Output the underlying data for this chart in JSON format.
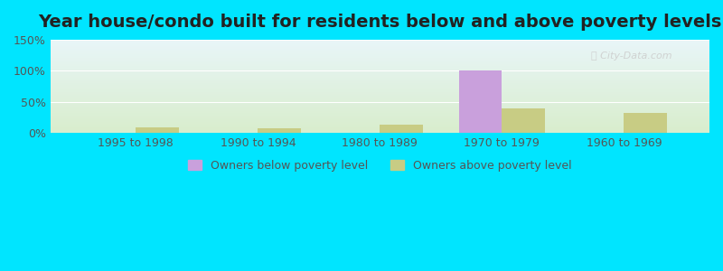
{
  "title": "Year house/condo built for residents below and above poverty levels",
  "categories": [
    "1995 to 1998",
    "1990 to 1994",
    "1980 to 1989",
    "1970 to 1979",
    "1960 to 1969"
  ],
  "below_poverty": [
    0,
    0,
    0,
    100,
    0
  ],
  "above_poverty": [
    9,
    7,
    13,
    40,
    32
  ],
  "below_color": "#c9a0dc",
  "above_color": "#c8cc84",
  "ylim": [
    0,
    150
  ],
  "yticks": [
    0,
    50,
    100,
    150
  ],
  "ytick_labels": [
    "0%",
    "50%",
    "100%",
    "150%"
  ],
  "background_outer": "#00e5ff",
  "background_plot_top": "#e8f5f8",
  "background_plot_bottom": "#d8edcc",
  "bar_width": 0.35,
  "legend_below_label": "Owners below poverty level",
  "legend_above_label": "Owners above poverty level",
  "title_fontsize": 14,
  "tick_fontsize": 9,
  "legend_fontsize": 9
}
